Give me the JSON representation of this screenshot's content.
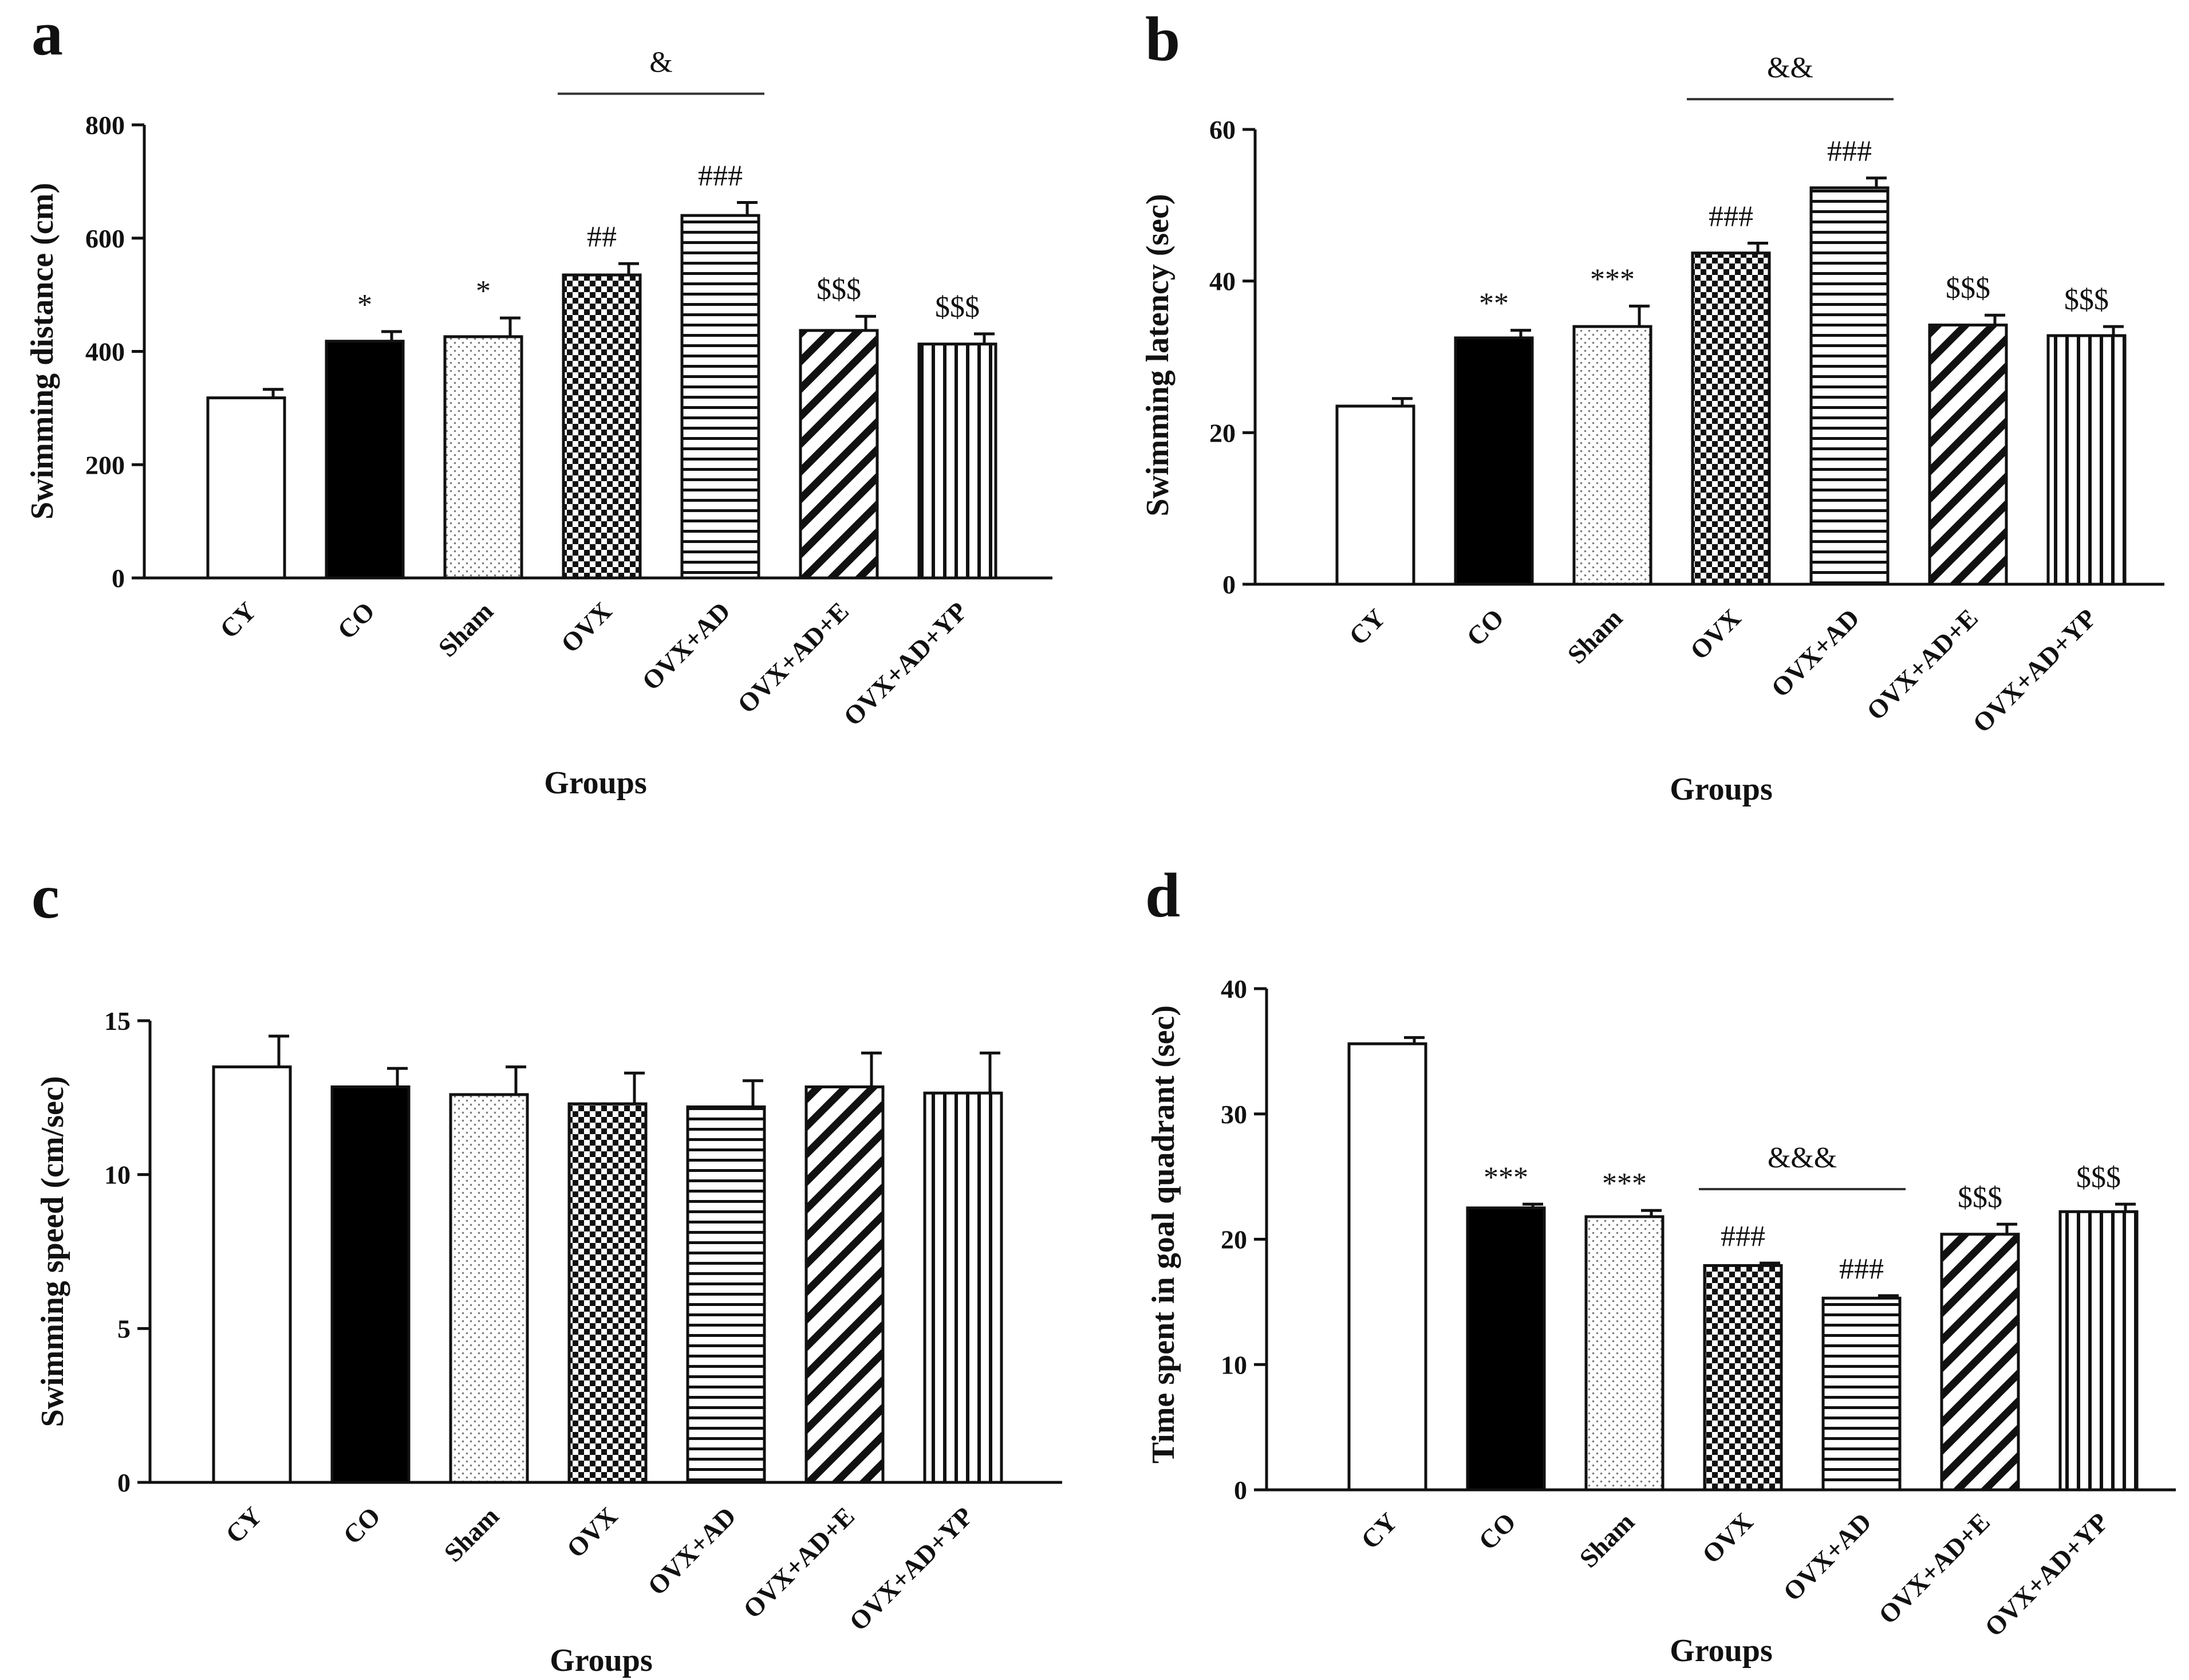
{
  "chart_data": [
    {
      "type": "bar",
      "panel": "a",
      "categories": [
        "CY",
        "CO",
        "Sham",
        "OVX",
        "OVX+AD",
        "OVX+AD+E",
        "OVX+AD+YP"
      ],
      "values": [
        318,
        418,
        426,
        535,
        640,
        437,
        413
      ],
      "errors": [
        15,
        17,
        33,
        20,
        23,
        25,
        18
      ],
      "fills": [
        "white",
        "black",
        "dots",
        "checker",
        "hlines",
        "diag",
        "vlines"
      ],
      "annotations": [
        "",
        "*",
        "*",
        "##",
        "###",
        "$$$",
        "$$$"
      ],
      "bracket": {
        "from": 3,
        "to": 4,
        "label": "&",
        "value": 855
      },
      "xlabel": "Groups",
      "ylabel": "Swimming distance (cm)",
      "ylim": [
        0,
        800
      ],
      "yticks": [
        0,
        200,
        400,
        600,
        800
      ]
    },
    {
      "type": "bar",
      "panel": "b",
      "categories": [
        "CY",
        "CO",
        "Sham",
        "OVX",
        "OVX+AD",
        "OVX+AD+E",
        "OVX+AD+YP"
      ],
      "values": [
        23.5,
        32.5,
        34.0,
        43.7,
        52.3,
        34.2,
        32.8
      ],
      "errors": [
        1.0,
        1.0,
        2.7,
        1.3,
        1.3,
        1.3,
        1.2
      ],
      "fills": [
        "white",
        "black",
        "dots",
        "checker",
        "hlines",
        "diag",
        "vlines"
      ],
      "annotations": [
        "",
        "**",
        "***",
        "###",
        "###",
        "$$$",
        "$$$"
      ],
      "bracket": {
        "from": 3,
        "to": 4,
        "label": "&&",
        "value": 64
      },
      "xlabel": "Groups",
      "ylabel": "Swimming latency (sec)",
      "ylim": [
        0,
        60
      ],
      "yticks": [
        0,
        20,
        40,
        60
      ]
    },
    {
      "type": "bar",
      "panel": "c",
      "categories": [
        "CY",
        "CO",
        "Sham",
        "OVX",
        "OVX+AD",
        "OVX+AD+E",
        "OVX+AD+YP"
      ],
      "values": [
        13.5,
        12.85,
        12.6,
        12.3,
        12.2,
        12.85,
        12.65
      ],
      "errors": [
        1.0,
        0.6,
        0.9,
        1.0,
        0.85,
        1.1,
        1.3
      ],
      "fills": [
        "white",
        "black",
        "dots",
        "checker",
        "hlines",
        "diag",
        "vlines"
      ],
      "annotations": [
        "",
        "",
        "",
        "",
        "",
        "",
        ""
      ],
      "bracket": null,
      "xlabel": "Groups",
      "ylabel": "Swimming speed (cm/sec)",
      "ylim": [
        0,
        15
      ],
      "yticks": [
        0,
        5,
        10,
        15
      ]
    },
    {
      "type": "bar",
      "panel": "d",
      "categories": [
        "CY",
        "CO",
        "Sham",
        "OVX",
        "OVX+AD",
        "OVX+AD+E",
        "OVX+AD+YP"
      ],
      "values": [
        35.6,
        22.5,
        21.8,
        17.9,
        15.3,
        20.4,
        22.2
      ],
      "errors": [
        0.5,
        0.3,
        0.5,
        0.2,
        0.2,
        0.8,
        0.6
      ],
      "fills": [
        "white",
        "black",
        "dots",
        "checker",
        "hlines",
        "diag",
        "vlines"
      ],
      "annotations": [
        "",
        "***",
        "***",
        "###",
        "###",
        "$$$",
        "$$$"
      ],
      "bracket": {
        "from": 3,
        "to": 4,
        "label": "&&&",
        "value": 24.0
      },
      "xlabel": "Groups",
      "ylabel": "Time spent in goal quadrant (sec)",
      "ylim": [
        0,
        40
      ],
      "yticks": [
        0,
        10,
        20,
        30,
        40
      ]
    }
  ]
}
